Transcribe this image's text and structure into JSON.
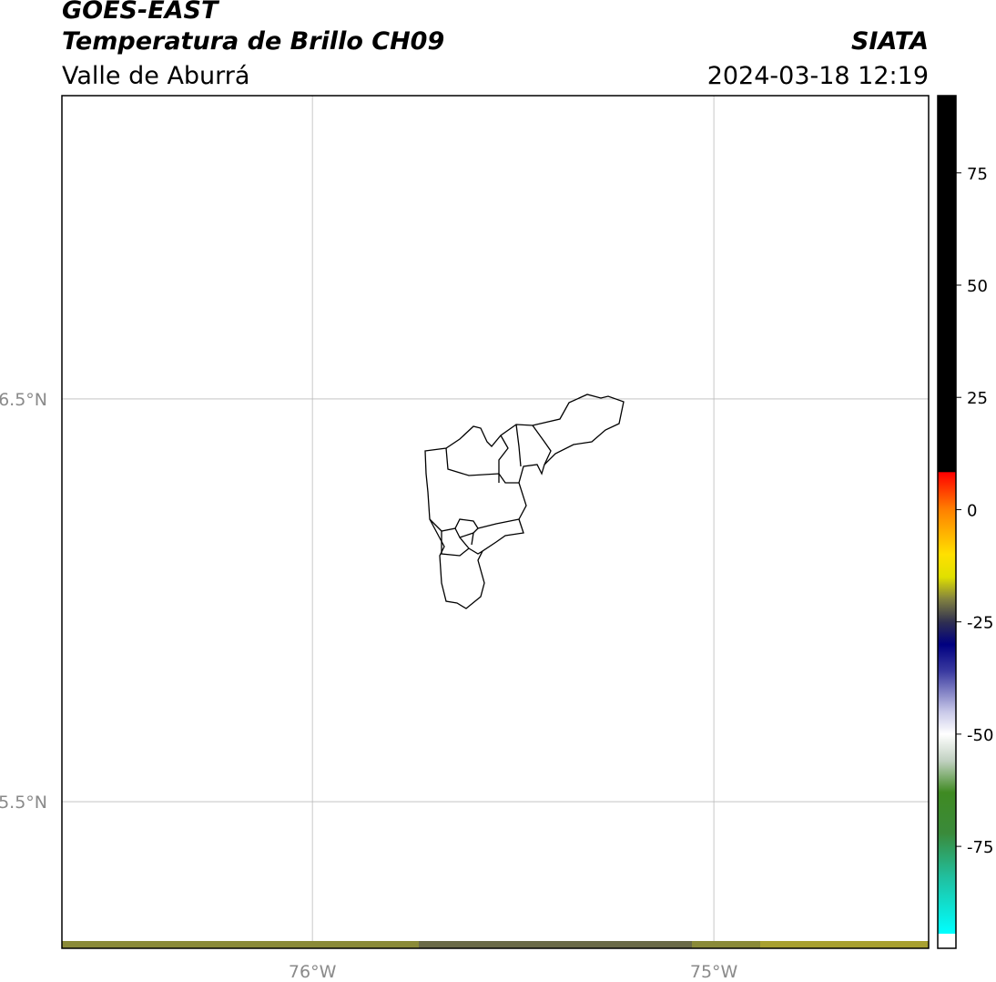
{
  "header": {
    "title": "GOES-EAST",
    "subtitle": "Temperatura de Brillo CH09",
    "region": "Valle de Aburrá",
    "source": "SIATA",
    "datetime": "2024-03-18 12:19"
  },
  "map": {
    "xlim": [
      -76.624,
      -74.465
    ],
    "ylim": [
      5.136,
      7.253
    ],
    "xticks": [
      {
        "value": -76,
        "label": "76°W"
      },
      {
        "value": -75,
        "label": "75°W"
      }
    ],
    "yticks": [
      {
        "value": 6.5,
        "label": "6.5°N"
      },
      {
        "value": 5.5,
        "label": "5.5°N"
      }
    ],
    "grid": true
  },
  "colorbar": {
    "lim": [
      -97.7,
      92.2
    ],
    "ticks": [
      75,
      50,
      25,
      0,
      -25,
      -50,
      -75
    ],
    "colorscale": [
      [
        -97.7,
        "#ffffff"
      ],
      [
        -94.5,
        "#ffffff"
      ],
      [
        -94.4,
        "#00ffff"
      ],
      [
        -82,
        "#20c0a0"
      ],
      [
        -72,
        "#3a8a3a"
      ],
      [
        -63,
        "#3f8a22"
      ],
      [
        -56,
        "#c0d0c0"
      ],
      [
        -50,
        "#ffffff"
      ],
      [
        -45,
        "#c8c8e8"
      ],
      [
        -36,
        "#3a3aa0"
      ],
      [
        -30,
        "#000080"
      ],
      [
        -25,
        "#303050"
      ],
      [
        -20,
        "#808040"
      ],
      [
        -15,
        "#e0e000"
      ],
      [
        -10,
        "#ffe000"
      ],
      [
        0,
        "#ff8000"
      ],
      [
        8.3,
        "#ff0000"
      ],
      [
        8.4,
        "#000000"
      ],
      [
        92.2,
        "#000000"
      ]
    ]
  }
}
